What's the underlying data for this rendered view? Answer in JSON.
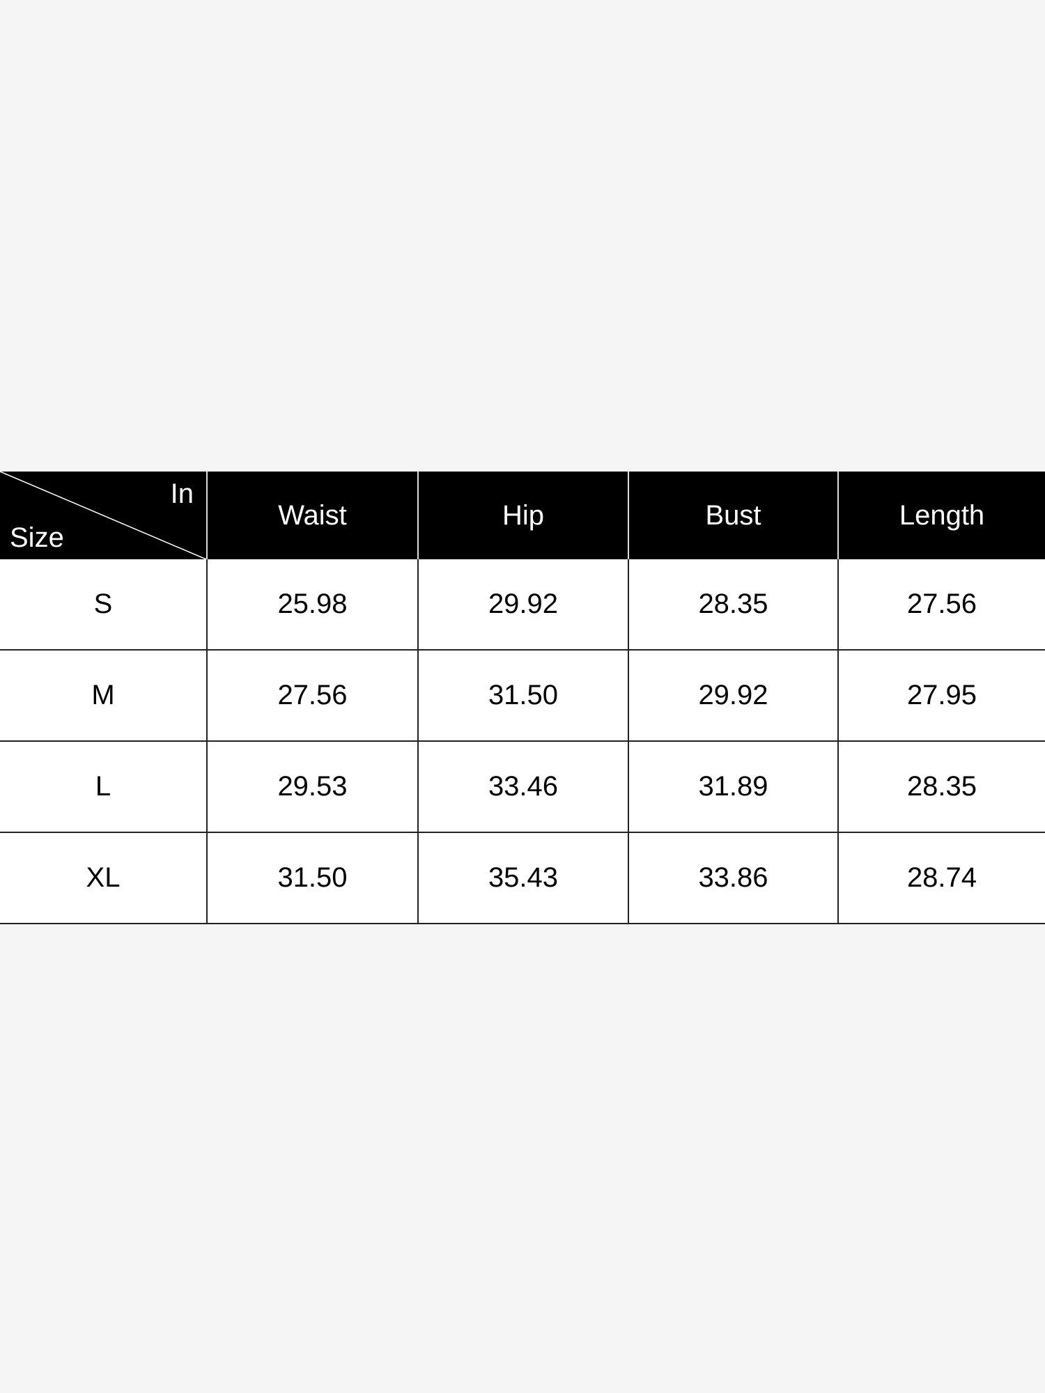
{
  "table": {
    "corner": {
      "top_right": "In",
      "bottom_left": "Size"
    },
    "columns": [
      "Waist",
      "Hip",
      "Bust",
      "Length"
    ],
    "rows": [
      {
        "size": "S",
        "values": [
          "25.98",
          "29.92",
          "28.35",
          "27.56"
        ]
      },
      {
        "size": "M",
        "values": [
          "27.56",
          "31.50",
          "29.92",
          "27.95"
        ]
      },
      {
        "size": "L",
        "values": [
          "29.53",
          "33.46",
          "31.89",
          "28.35"
        ]
      },
      {
        "size": "XL",
        "values": [
          "31.50",
          "35.43",
          "33.86",
          "28.74"
        ]
      }
    ]
  },
  "colors": {
    "header_bg": "#000000",
    "header_text": "#ffffff",
    "page_bg": "#f5f5f5"
  }
}
